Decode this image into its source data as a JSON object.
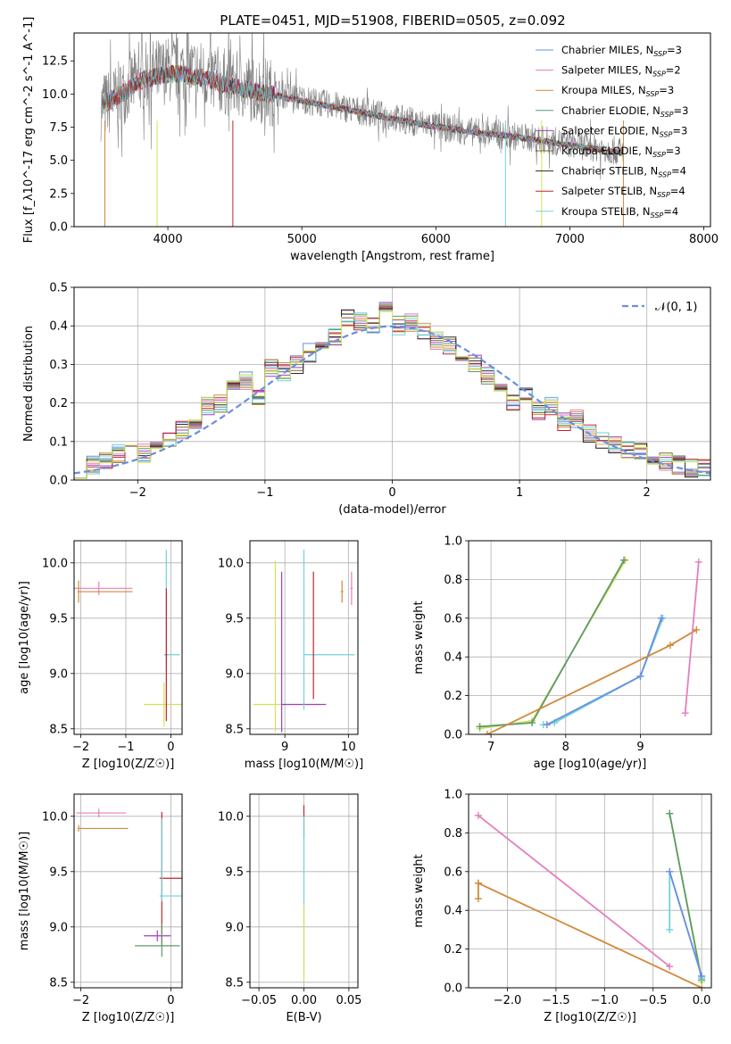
{
  "figure": {
    "title": "PLATE=0451, MJD=51908, FIBERID=0505, z=0.092"
  },
  "series_colors": [
    "#6a8fdf",
    "#e47fbd",
    "#d08a3a",
    "#5e9a6c",
    "#a23ec2",
    "#7a6a2c",
    "#2a2a2a",
    "#c0262c",
    "#72d3d8",
    "#d4e157",
    "#808080"
  ],
  "chart_data": [
    {
      "id": "spectrum",
      "type": "line",
      "xlabel": "wavelength [Angstrom, rest frame]",
      "ylabel": "Flux [f_λ10^-17 erg cm^-2 s^-1 A^-1]",
      "xlim": [
        3300,
        8050
      ],
      "ylim": [
        0,
        14.6
      ],
      "xticks": [
        4000,
        5000,
        6000,
        7000,
        8000
      ],
      "yticks": [
        0.0,
        2.5,
        5.0,
        7.5,
        10.0,
        12.5
      ],
      "grid": false,
      "legend_position": "top-right",
      "legend": [
        {
          "label": "Chabrier MILES",
          "n": "3",
          "color": "#6a8fdf"
        },
        {
          "label": "Salpeter MILES",
          "n": "2",
          "color": "#e47fbd"
        },
        {
          "label": "Kroupa MILES",
          "n": "3",
          "color": "#d08a3a"
        },
        {
          "label": "Chabrier ELODIE",
          "n": "3",
          "color": "#5e9a6c"
        },
        {
          "label": "Salpeter ELODIE",
          "n": "3",
          "color": "#a23ec2"
        },
        {
          "label": "Kroupa ELODIE",
          "n": "3",
          "color": "#7a6a2c"
        },
        {
          "label": "Chabrier STELIB",
          "n": "4",
          "color": "#2a2a2a"
        },
        {
          "label": "Salpeter STELIB",
          "n": "4",
          "color": "#c0262c"
        },
        {
          "label": "Kroupa STELIB",
          "n": "4",
          "color": "#72d3d8"
        }
      ],
      "data_anchor_x": [
        3500,
        3600,
        3700,
        3800,
        3900,
        4000,
        4100,
        4200,
        4300,
        4400,
        4500,
        4700,
        4900,
        5100,
        5300,
        5500,
        5700,
        5900,
        6100,
        6300,
        6500,
        6700,
        6900,
        7100,
        7300,
        7400
      ],
      "data_anchor_y": [
        9.0,
        9.6,
        10.5,
        11.2,
        11.6,
        11.8,
        11.9,
        11.7,
        11.4,
        11.0,
        10.7,
        10.3,
        9.9,
        9.4,
        9.0,
        8.6,
        8.2,
        7.8,
        7.4,
        7.1,
        6.9,
        6.7,
        6.4,
        6.1,
        5.8,
        5.6
      ],
      "model_anchor_y": [
        9.1,
        9.7,
        10.3,
        11.0,
        11.3,
        11.5,
        11.5,
        11.3,
        11.1,
        10.8,
        10.5,
        10.1,
        9.7,
        9.3,
        8.9,
        8.5,
        8.1,
        7.7,
        7.4,
        7.1,
        6.9,
        6.6,
        6.3,
        6.0,
        5.7,
        5.5
      ]
    },
    {
      "id": "residuals",
      "type": "step",
      "xlabel": "(data-model)/error",
      "ylabel": "Normed distribution",
      "xlim": [
        -2.5,
        2.5
      ],
      "ylim": [
        0,
        0.5
      ],
      "xticks": [
        -2,
        -1,
        0,
        1,
        2
      ],
      "yticks": [
        0.0,
        0.1,
        0.2,
        0.3,
        0.4,
        0.5
      ],
      "grid": true,
      "legend_label": "𝒩(0, 1)",
      "legend_position": "top-right",
      "bin_centers": [
        -2.45,
        -2.35,
        -2.25,
        -2.15,
        -2.05,
        -1.95,
        -1.85,
        -1.75,
        -1.65,
        -1.55,
        -1.45,
        -1.35,
        -1.25,
        -1.15,
        -1.05,
        -0.95,
        -0.85,
        -0.75,
        -0.65,
        -0.55,
        -0.45,
        -0.35,
        -0.25,
        -0.15,
        -0.05,
        0.05,
        0.15,
        0.25,
        0.35,
        0.45,
        0.55,
        0.65,
        0.75,
        0.85,
        0.95,
        1.05,
        1.15,
        1.25,
        1.35,
        1.45,
        1.55,
        1.65,
        1.75,
        1.85,
        1.95,
        2.05,
        2.15,
        2.25,
        2.35,
        2.45
      ],
      "histogram": [
        0.03,
        0.04,
        0.05,
        0.07,
        0.08,
        0.07,
        0.09,
        0.11,
        0.13,
        0.15,
        0.19,
        0.2,
        0.24,
        0.26,
        0.21,
        0.29,
        0.28,
        0.3,
        0.33,
        0.35,
        0.37,
        0.42,
        0.41,
        0.4,
        0.44,
        0.4,
        0.41,
        0.39,
        0.36,
        0.35,
        0.32,
        0.3,
        0.27,
        0.24,
        0.2,
        0.23,
        0.18,
        0.19,
        0.15,
        0.16,
        0.12,
        0.1,
        0.09,
        0.08,
        0.07,
        0.06,
        0.05,
        0.04,
        0.03,
        0.03
      ],
      "gaussian": {
        "mean": 0,
        "sigma": 1,
        "label": "𝒩(0, 1)"
      }
    },
    {
      "id": "z-vs-age",
      "type": "errorbar",
      "xlabel": "Z [log10(Z/Z☉)]",
      "ylabel": "age [log10(age/yr)]",
      "xlim": [
        -2.15,
        0.25
      ],
      "ylim": [
        8.45,
        10.2
      ],
      "xticks": [
        -2,
        -1,
        0
      ],
      "yticks": [
        8.5,
        9.0,
        9.5,
        10.0
      ],
      "grid": true,
      "points": [
        {
          "x": -1.6,
          "y": 9.77,
          "xerr": [
            0.6,
            0.75
          ],
          "yerr": [
            0.06,
            0.06
          ],
          "color": "#e47fbd"
        },
        {
          "x": -2.05,
          "y": 9.74,
          "xerr": [
            0.02,
            1.2
          ],
          "yerr": [
            0.1,
            0.1
          ],
          "color": "#d08a3a"
        },
        {
          "x": -0.1,
          "y": 9.17,
          "xerr": [
            0.05,
            0.3
          ],
          "yerr": [
            0.15,
            0.95
          ],
          "color": "#72d3d8"
        },
        {
          "x": -0.15,
          "y": 8.72,
          "xerr": [
            0.45,
            0.5
          ],
          "yerr": [
            0.2,
            0.2
          ],
          "color": "#d4e157"
        },
        {
          "x": -0.1,
          "y": 9.17,
          "xerr": [
            0.02,
            0.02
          ],
          "yerr": [
            0.6,
            0.6
          ],
          "color": "#c0262c"
        }
      ]
    },
    {
      "id": "mass-vs-age",
      "type": "errorbar",
      "xlabel": "mass [log10(M/M☉)]",
      "ylabel": "",
      "xlim": [
        8.45,
        10.15
      ],
      "ylim": [
        8.45,
        10.2
      ],
      "xticks": [
        9,
        10
      ],
      "yticks": [
        8.5,
        9.0,
        9.5,
        10.0
      ],
      "grid": true,
      "points": [
        {
          "x": 8.85,
          "y": 8.72,
          "xerr": [
            0.35,
            0.7
          ],
          "yerr": [
            0.25,
            1.3
          ],
          "color": "#d4e157"
        },
        {
          "x": 8.95,
          "y": 8.72,
          "xerr": [
            0.0,
            0.7
          ],
          "yerr": [
            0.25,
            1.2
          ],
          "color": "#a23ec2"
        },
        {
          "x": 9.3,
          "y": 9.17,
          "xerr": [
            0.0,
            0.8
          ],
          "yerr": [
            0.5,
            0.95
          ],
          "color": "#72d3d8"
        },
        {
          "x": 9.45,
          "y": 9.17,
          "xerr": [
            0.0,
            0.0
          ],
          "yerr": [
            0.4,
            0.75
          ],
          "color": "#c0262c"
        },
        {
          "x": 9.9,
          "y": 9.74,
          "xerr": [
            0.02,
            0.02
          ],
          "yerr": [
            0.1,
            0.1
          ],
          "color": "#d08a3a"
        },
        {
          "x": 10.05,
          "y": 9.77,
          "xerr": [
            0.02,
            0.02
          ],
          "yerr": [
            0.15,
            0.15
          ],
          "color": "#e47fbd"
        }
      ]
    },
    {
      "id": "age-vs-weight",
      "type": "line",
      "xlabel": "age [log10(age/yr)]",
      "ylabel": "mass weight",
      "xlim": [
        6.7,
        9.95
      ],
      "ylim": [
        0,
        1.0
      ],
      "xticks": [
        7,
        8,
        9
      ],
      "yticks": [
        0.0,
        0.2,
        0.4,
        0.6,
        0.8,
        1.0
      ],
      "grid": true,
      "series": [
        {
          "color": "#d4e157",
          "x": [
            6.85,
            7.55,
            8.8
          ],
          "y": [
            0.03,
            0.07,
            0.9
          ]
        },
        {
          "color": "#5e9a6c",
          "x": [
            6.85,
            7.55,
            8.78
          ],
          "y": [
            0.04,
            0.06,
            0.9
          ]
        },
        {
          "color": "#72d3d8",
          "x": [
            7.7,
            7.85,
            9.0,
            9.3
          ],
          "y": [
            0.05,
            0.06,
            0.3,
            0.6
          ]
        },
        {
          "color": "#6a8fdf",
          "x": [
            7.75,
            9.0,
            9.28
          ],
          "y": [
            0.05,
            0.3,
            0.6
          ]
        },
        {
          "color": "#d08a3a",
          "x": [
            6.95,
            9.4,
            9.75
          ],
          "y": [
            0.0,
            0.46,
            0.54
          ]
        },
        {
          "color": "#e47fbd",
          "x": [
            9.6,
            9.78
          ],
          "y": [
            0.11,
            0.89
          ]
        }
      ]
    },
    {
      "id": "z-vs-mass",
      "type": "errorbar",
      "xlabel": "Z [log10(Z/Z☉)]",
      "ylabel": "mass [log10(M/M☉)]",
      "xlim": [
        -2.15,
        0.25
      ],
      "ylim": [
        8.45,
        10.2
      ],
      "xticks": [
        -2,
        0
      ],
      "yticks": [
        8.5,
        9.0,
        9.5,
        10.0
      ],
      "grid": true,
      "points": [
        {
          "x": -1.6,
          "y": 10.03,
          "xerr": [
            0.5,
            0.6
          ],
          "yerr": [
            0.04,
            0.04
          ],
          "color": "#e47fbd"
        },
        {
          "x": -2.05,
          "y": 9.89,
          "xerr": [
            0.02,
            1.1
          ],
          "yerr": [
            0.03,
            0.03
          ],
          "color": "#d08a3a"
        },
        {
          "x": -0.2,
          "y": 9.44,
          "xerr": [
            0.05,
            0.5
          ],
          "yerr": [
            0.6,
            0.6
          ],
          "color": "#c0262c"
        },
        {
          "x": -0.2,
          "y": 9.28,
          "xerr": [
            0.05,
            0.5
          ],
          "yerr": [
            0.05,
            0.7
          ],
          "color": "#72d3d8"
        },
        {
          "x": -0.3,
          "y": 8.92,
          "xerr": [
            0.3,
            0.3
          ],
          "yerr": [
            0.05,
            0.05
          ],
          "color": "#a23ec2"
        },
        {
          "x": -0.2,
          "y": 8.83,
          "xerr": [
            0.6,
            0.4
          ],
          "yerr": [
            0.1,
            0.2
          ],
          "color": "#5e9a6c"
        }
      ]
    },
    {
      "id": "ebv",
      "type": "errorbar",
      "xlabel": "E(B-V)",
      "ylabel": "",
      "xlim": [
        -0.06,
        0.06
      ],
      "ylim": [
        8.45,
        10.2
      ],
      "xticks": [
        -0.05,
        0.0,
        0.05
      ],
      "yticks": [
        8.5,
        9.0,
        9.5,
        10.0
      ],
      "grid": true,
      "points": [
        {
          "x": 0.0,
          "y": 9.95,
          "xerr": [
            0,
            0
          ],
          "yerr": [
            0.15,
            0.15
          ],
          "color": "#c0262c"
        },
        {
          "x": 0.0,
          "y": 9.3,
          "xerr": [
            0,
            0
          ],
          "yerr": [
            0.7,
            0.7
          ],
          "color": "#72d3d8"
        },
        {
          "x": 0.0,
          "y": 8.85,
          "xerr": [
            0,
            0
          ],
          "yerr": [
            0.35,
            0.35
          ],
          "color": "#d4e157"
        }
      ]
    },
    {
      "id": "z-vs-weight",
      "type": "line",
      "xlabel": "Z [log10(Z/Z☉)]",
      "ylabel": "mass weight",
      "xlim": [
        -2.4,
        0.1
      ],
      "ylim": [
        0,
        1.0
      ],
      "xticks": [
        -2.0,
        -1.5,
        -1.0,
        -0.5,
        0.0
      ],
      "yticks": [
        0.0,
        0.2,
        0.4,
        0.6,
        0.8,
        1.0
      ],
      "grid": true,
      "series": [
        {
          "color": "#e47fbd",
          "x": [
            -2.3,
            -0.33
          ],
          "y": [
            0.89,
            0.11
          ]
        },
        {
          "color": "#d08a3a",
          "x": [
            -2.3,
            -2.3,
            -2.3,
            0.0
          ],
          "y": [
            0.46,
            0.54,
            0.54,
            0.0
          ]
        },
        {
          "color": "#d4e157",
          "x": [
            -0.33,
            0.0,
            0.0
          ],
          "y": [
            0.9,
            0.05,
            0.03
          ]
        },
        {
          "color": "#5e9a6c",
          "x": [
            -0.33,
            0.0
          ],
          "y": [
            0.9,
            0.04
          ]
        },
        {
          "color": "#72d3d8",
          "x": [
            -0.33,
            -0.33,
            0.0,
            0.0
          ],
          "y": [
            0.3,
            0.6,
            0.06,
            0.05
          ]
        },
        {
          "color": "#6a8fdf",
          "x": [
            -0.33,
            0.0
          ],
          "y": [
            0.6,
            0.06
          ]
        }
      ]
    }
  ]
}
